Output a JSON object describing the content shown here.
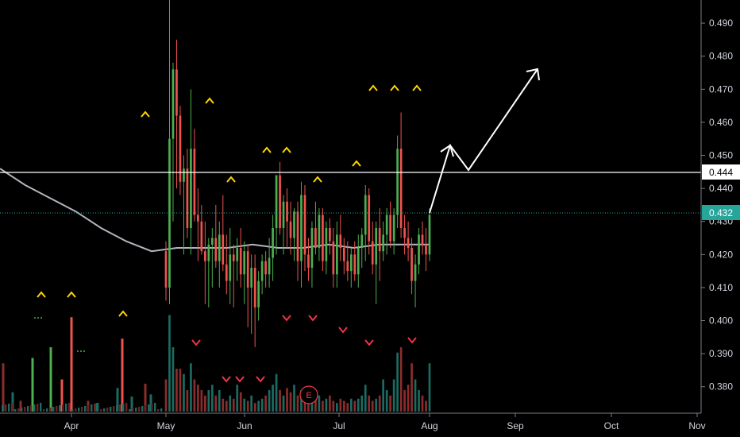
{
  "chart_data": {
    "type": "candlestick",
    "y_range": [
      0.372,
      0.497
    ],
    "price_ticks": [
      "0.490",
      "0.480",
      "0.470",
      "0.460",
      "0.450",
      "0.440",
      "0.430",
      "0.420",
      "0.410",
      "0.400",
      "0.390",
      "0.380"
    ],
    "time_labels": [
      "Apr",
      "May",
      "Jun",
      "Jul",
      "Aug",
      "Sep",
      "Oct",
      "Nov"
    ],
    "last_price": "0.432",
    "horizontal_line": {
      "label": "0.444",
      "value": 0.444
    },
    "earnings_marker": "E",
    "colors": {
      "up": "#26a69a",
      "up_bright": "#4caf50",
      "down": "#ef5350",
      "background": "#000000",
      "ma": "#b2b5be",
      "signal_up": "#ffd600",
      "signal_down": "#f23645",
      "last_price": "#26a69a"
    },
    "moving_average": [
      0.446,
      0.441,
      0.437,
      0.433,
      0.428,
      0.424,
      0.421,
      0.422,
      0.422,
      0.422,
      0.423,
      0.422,
      0.422,
      0.423,
      0.422,
      0.423,
      0.423,
      0.423
    ],
    "candles": [
      {
        "o": 0.421,
        "h": 0.424,
        "l": 0.406,
        "c": 0.41
      },
      {
        "o": 0.41,
        "h": 0.497,
        "l": 0.405,
        "c": 0.455
      },
      {
        "o": 0.455,
        "h": 0.478,
        "l": 0.43,
        "c": 0.476
      },
      {
        "o": 0.476,
        "h": 0.485,
        "l": 0.44,
        "c": 0.462
      },
      {
        "o": 0.462,
        "h": 0.465,
        "l": 0.438,
        "c": 0.442
      },
      {
        "o": 0.442,
        "h": 0.45,
        "l": 0.42,
        "c": 0.446
      },
      {
        "o": 0.446,
        "h": 0.452,
        "l": 0.425,
        "c": 0.428
      },
      {
        "o": 0.428,
        "h": 0.47,
        "l": 0.42,
        "c": 0.452
      },
      {
        "o": 0.452,
        "h": 0.458,
        "l": 0.43,
        "c": 0.432
      },
      {
        "o": 0.432,
        "h": 0.44,
        "l": 0.418,
        "c": 0.43
      },
      {
        "o": 0.43,
        "h": 0.435,
        "l": 0.42,
        "c": 0.421
      },
      {
        "o": 0.421,
        "h": 0.43,
        "l": 0.405,
        "c": 0.418
      },
      {
        "o": 0.418,
        "h": 0.425,
        "l": 0.404,
        "c": 0.423
      },
      {
        "o": 0.423,
        "h": 0.428,
        "l": 0.41,
        "c": 0.425
      },
      {
        "o": 0.425,
        "h": 0.435,
        "l": 0.416,
        "c": 0.418
      },
      {
        "o": 0.418,
        "h": 0.43,
        "l": 0.41,
        "c": 0.426
      },
      {
        "o": 0.426,
        "h": 0.438,
        "l": 0.415,
        "c": 0.417
      },
      {
        "o": 0.417,
        "h": 0.426,
        "l": 0.408,
        "c": 0.412
      },
      {
        "o": 0.412,
        "h": 0.428,
        "l": 0.405,
        "c": 0.42
      },
      {
        "o": 0.42,
        "h": 0.423,
        "l": 0.404,
        "c": 0.418
      },
      {
        "o": 0.418,
        "h": 0.425,
        "l": 0.412,
        "c": 0.422
      },
      {
        "o": 0.422,
        "h": 0.428,
        "l": 0.41,
        "c": 0.414
      },
      {
        "o": 0.414,
        "h": 0.424,
        "l": 0.405,
        "c": 0.421
      },
      {
        "o": 0.421,
        "h": 0.423,
        "l": 0.398,
        "c": 0.41
      },
      {
        "o": 0.41,
        "h": 0.42,
        "l": 0.396,
        "c": 0.416
      },
      {
        "o": 0.416,
        "h": 0.42,
        "l": 0.392,
        "c": 0.404
      },
      {
        "o": 0.404,
        "h": 0.415,
        "l": 0.4,
        "c": 0.412
      },
      {
        "o": 0.412,
        "h": 0.42,
        "l": 0.408,
        "c": 0.418
      },
      {
        "o": 0.418,
        "h": 0.421,
        "l": 0.41,
        "c": 0.414
      },
      {
        "o": 0.414,
        "h": 0.425,
        "l": 0.41,
        "c": 0.419
      },
      {
        "o": 0.419,
        "h": 0.432,
        "l": 0.412,
        "c": 0.428
      },
      {
        "o": 0.428,
        "h": 0.444,
        "l": 0.42,
        "c": 0.444
      },
      {
        "o": 0.444,
        "h": 0.448,
        "l": 0.426,
        "c": 0.428
      },
      {
        "o": 0.428,
        "h": 0.438,
        "l": 0.42,
        "c": 0.436
      },
      {
        "o": 0.436,
        "h": 0.44,
        "l": 0.422,
        "c": 0.43
      },
      {
        "o": 0.43,
        "h": 0.436,
        "l": 0.42,
        "c": 0.425
      },
      {
        "o": 0.425,
        "h": 0.434,
        "l": 0.418,
        "c": 0.433
      },
      {
        "o": 0.433,
        "h": 0.436,
        "l": 0.412,
        "c": 0.418
      },
      {
        "o": 0.418,
        "h": 0.442,
        "l": 0.41,
        "c": 0.438
      },
      {
        "o": 0.438,
        "h": 0.441,
        "l": 0.415,
        "c": 0.42
      },
      {
        "o": 0.42,
        "h": 0.425,
        "l": 0.412,
        "c": 0.416
      },
      {
        "o": 0.416,
        "h": 0.43,
        "l": 0.41,
        "c": 0.428
      },
      {
        "o": 0.428,
        "h": 0.436,
        "l": 0.42,
        "c": 0.422
      },
      {
        "o": 0.422,
        "h": 0.434,
        "l": 0.418,
        "c": 0.432
      },
      {
        "o": 0.432,
        "h": 0.434,
        "l": 0.415,
        "c": 0.418
      },
      {
        "o": 0.418,
        "h": 0.43,
        "l": 0.414,
        "c": 0.428
      },
      {
        "o": 0.428,
        "h": 0.431,
        "l": 0.42,
        "c": 0.424
      },
      {
        "o": 0.424,
        "h": 0.428,
        "l": 0.41,
        "c": 0.414
      },
      {
        "o": 0.414,
        "h": 0.43,
        "l": 0.41,
        "c": 0.426
      },
      {
        "o": 0.426,
        "h": 0.432,
        "l": 0.418,
        "c": 0.422
      },
      {
        "o": 0.422,
        "h": 0.425,
        "l": 0.414,
        "c": 0.418
      },
      {
        "o": 0.418,
        "h": 0.424,
        "l": 0.412,
        "c": 0.415
      },
      {
        "o": 0.415,
        "h": 0.422,
        "l": 0.41,
        "c": 0.42
      },
      {
        "o": 0.42,
        "h": 0.424,
        "l": 0.412,
        "c": 0.414
      },
      {
        "o": 0.414,
        "h": 0.426,
        "l": 0.41,
        "c": 0.422
      },
      {
        "o": 0.422,
        "h": 0.428,
        "l": 0.416,
        "c": 0.426
      },
      {
        "o": 0.426,
        "h": 0.441,
        "l": 0.418,
        "c": 0.438
      },
      {
        "o": 0.438,
        "h": 0.44,
        "l": 0.42,
        "c": 0.424
      },
      {
        "o": 0.424,
        "h": 0.43,
        "l": 0.414,
        "c": 0.417
      },
      {
        "o": 0.417,
        "h": 0.43,
        "l": 0.405,
        "c": 0.428
      },
      {
        "o": 0.428,
        "h": 0.434,
        "l": 0.412,
        "c": 0.421
      },
      {
        "o": 0.421,
        "h": 0.43,
        "l": 0.418,
        "c": 0.426
      },
      {
        "o": 0.426,
        "h": 0.434,
        "l": 0.42,
        "c": 0.432
      },
      {
        "o": 0.432,
        "h": 0.436,
        "l": 0.422,
        "c": 0.424
      },
      {
        "o": 0.424,
        "h": 0.434,
        "l": 0.42,
        "c": 0.432
      },
      {
        "o": 0.432,
        "h": 0.456,
        "l": 0.428,
        "c": 0.452
      },
      {
        "o": 0.452,
        "h": 0.463,
        "l": 0.425,
        "c": 0.428
      },
      {
        "o": 0.428,
        "h": 0.432,
        "l": 0.42,
        "c": 0.425
      },
      {
        "o": 0.425,
        "h": 0.43,
        "l": 0.418,
        "c": 0.422
      },
      {
        "o": 0.422,
        "h": 0.425,
        "l": 0.408,
        "c": 0.412
      },
      {
        "o": 0.412,
        "h": 0.42,
        "l": 0.404,
        "c": 0.417
      },
      {
        "o": 0.417,
        "h": 0.428,
        "l": 0.414,
        "c": 0.426
      },
      {
        "o": 0.426,
        "h": 0.43,
        "l": 0.42,
        "c": 0.423
      },
      {
        "o": 0.423,
        "h": 0.428,
        "l": 0.415,
        "c": 0.42
      },
      {
        "o": 0.42,
        "h": 0.434,
        "l": 0.418,
        "c": 0.432
      }
    ],
    "volumes": [
      0.3,
      0.9,
      0.6,
      0.4,
      0.4,
      0.35,
      0.2,
      0.45,
      0.3,
      0.25,
      0.2,
      0.15,
      0.2,
      0.25,
      0.15,
      0.2,
      0.12,
      0.1,
      0.15,
      0.12,
      0.25,
      0.18,
      0.12,
      0.1,
      0.15,
      0.08,
      0.1,
      0.12,
      0.15,
      0.2,
      0.25,
      0.35,
      0.2,
      0.15,
      0.22,
      0.18,
      0.25,
      0.15,
      0.2,
      0.18,
      0.15,
      0.1,
      0.12,
      0.15,
      0.1,
      0.12,
      0.15,
      0.1,
      0.08,
      0.12,
      0.1,
      0.08,
      0.12,
      0.1,
      0.12,
      0.15,
      0.25,
      0.15,
      0.1,
      0.12,
      0.15,
      0.3,
      0.2,
      0.15,
      0.3,
      0.55,
      0.6,
      0.2,
      0.25,
      0.45,
      0.3,
      0.2,
      0.15,
      0.1,
      0.45
    ]
  }
}
